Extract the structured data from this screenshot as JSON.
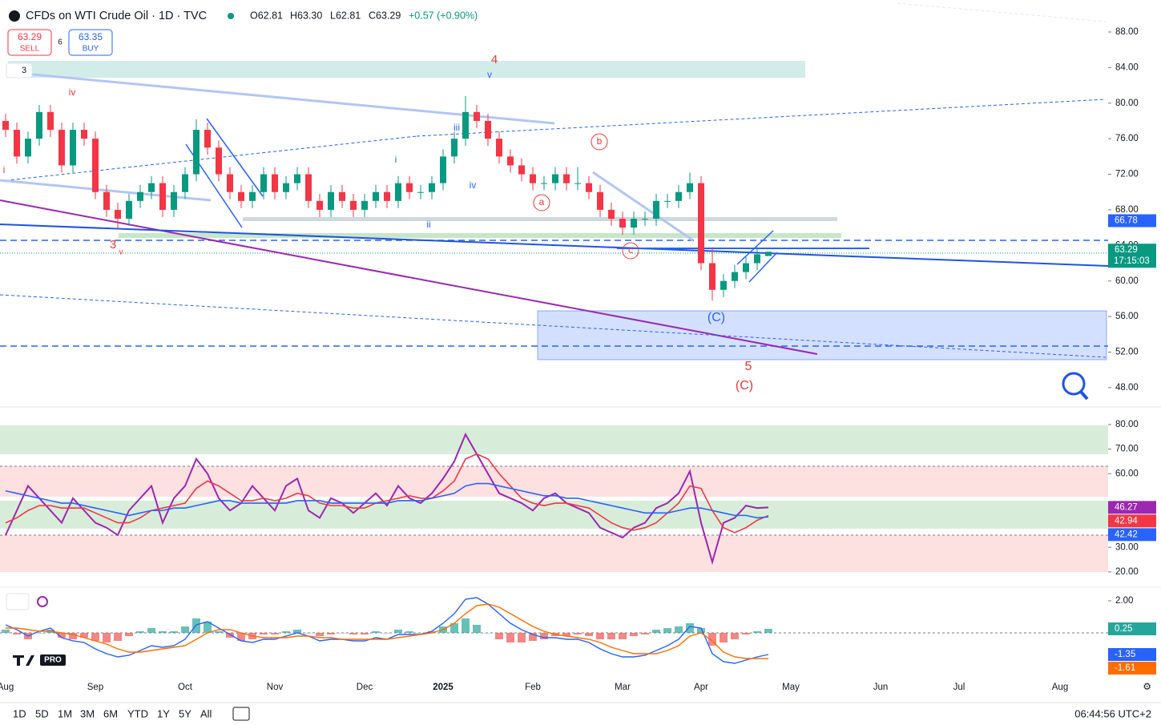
{
  "header": {
    "symbol": "CFDs on WTI Crude Oil · 1D · TVC",
    "quote": [
      "O62.81",
      "H63.30",
      "L62.81",
      "C63.29"
    ],
    "change": "+0.57 (+0.90%)",
    "sell_price": "63.29",
    "sell": "SELL",
    "spread": "6",
    "buy_price": "63.35",
    "buy": "BUY",
    "pane_count": "3",
    "countdown": "17:15:03"
  },
  "chart_data": [
    {
      "type": "candlestick",
      "up_color": "#089981",
      "down_color": "#f23645",
      "grid": false,
      "categories": [
        "Aug",
        null,
        null,
        null,
        null,
        null,
        null,
        null,
        "Sep",
        null,
        null,
        null,
        null,
        null,
        null,
        null,
        "Oct",
        null,
        null,
        null,
        null,
        null,
        null,
        null,
        "Nov",
        null,
        null,
        null,
        null,
        null,
        null,
        null,
        "Dec",
        null,
        null,
        null,
        null,
        null,
        null,
        "2025",
        null,
        null,
        null,
        null,
        null,
        null,
        null,
        "Feb",
        null,
        null,
        null,
        null,
        null,
        null,
        null,
        "Mar",
        null,
        null,
        null,
        null,
        null,
        null,
        "Apr",
        null,
        null,
        null,
        null,
        null,
        null,
        null,
        "May",
        null,
        null,
        null,
        null,
        null,
        null,
        null,
        "Jun",
        null,
        null,
        null,
        null,
        null,
        null,
        "Jul",
        null,
        null,
        null,
        null,
        null,
        null,
        null,
        null,
        "Aug",
        null,
        null,
        null
      ],
      "open": [
        78,
        77,
        74,
        76,
        79,
        77,
        73,
        77,
        76,
        70,
        68,
        67,
        69,
        70,
        71,
        68,
        70,
        72,
        77,
        75,
        72,
        70,
        69,
        70,
        72,
        70,
        71,
        72,
        69,
        68,
        70,
        69,
        68,
        69,
        70,
        69,
        71,
        70,
        70,
        71,
        74,
        76,
        79,
        78,
        76,
        74,
        73,
        72,
        71,
        71,
        72,
        71,
        71,
        70,
        68,
        67,
        66,
        67,
        67,
        69,
        69,
        70,
        71,
        62,
        59,
        60,
        61,
        62,
        62.81,
        null,
        null,
        null,
        null,
        null,
        null,
        null,
        null,
        null,
        null,
        null,
        null,
        null,
        null,
        null,
        null,
        null,
        null,
        null,
        null,
        null,
        null,
        null,
        null,
        null,
        null,
        null,
        null,
        null
      ],
      "high": [
        78.8,
        77.8,
        76.8,
        79.8,
        79.8,
        77.8,
        77.8,
        77.8,
        76.8,
        70.8,
        68.8,
        69.8,
        70.8,
        71.8,
        71.8,
        70.8,
        72.8,
        78.2,
        77.8,
        75.8,
        72.8,
        70.8,
        70.8,
        72.8,
        72.8,
        71.8,
        72.8,
        72.8,
        69.8,
        70.8,
        70.8,
        69.8,
        69.8,
        70.8,
        70.8,
        71.8,
        71.8,
        70.8,
        71.8,
        74.8,
        76.8,
        80.8,
        79.8,
        78.8,
        76.8,
        74.8,
        73.8,
        72.8,
        71.8,
        72.8,
        72.8,
        72.8,
        71.8,
        70.8,
        68.8,
        67.8,
        67.8,
        67.8,
        69.8,
        69.8,
        70.8,
        72.2,
        71.8,
        63.8,
        60.8,
        61.8,
        62.8,
        63.8,
        63.3,
        null,
        null,
        null,
        null,
        null,
        null,
        null,
        null,
        null,
        null,
        null,
        null,
        null,
        null,
        null,
        null,
        null,
        null,
        null,
        null,
        null,
        null,
        null,
        null,
        null,
        null,
        null,
        null,
        null
      ],
      "low": [
        76.2,
        73.2,
        73.2,
        75.2,
        76.2,
        72.2,
        72.2,
        75.2,
        69.2,
        67.2,
        65.8,
        66.2,
        68.2,
        69.2,
        67.2,
        67.2,
        69.2,
        71.2,
        74.2,
        71.2,
        69.2,
        68.2,
        68.2,
        69.2,
        69.2,
        69.2,
        70.2,
        68.2,
        67.2,
        67.2,
        68.2,
        67.2,
        67.2,
        68.2,
        68.2,
        68.2,
        69.2,
        69.2,
        69.2,
        70.2,
        73.2,
        75.2,
        77.2,
        75.2,
        73.2,
        72.2,
        71.2,
        70.2,
        70.2,
        70.2,
        70.2,
        70.2,
        69.2,
        67.2,
        66.2,
        65.2,
        65.2,
        66.2,
        66.2,
        68.2,
        68.2,
        69.2,
        61.2,
        57.8,
        58.2,
        59.2,
        60.2,
        61.2,
        62.81,
        null,
        null,
        null,
        null,
        null,
        null,
        null,
        null,
        null,
        null,
        null,
        null,
        null,
        null,
        null,
        null,
        null,
        null,
        null,
        null,
        null,
        null,
        null,
        null,
        null,
        null,
        null,
        null,
        null
      ],
      "close": [
        77,
        74,
        76,
        79,
        77,
        73,
        77,
        76,
        70,
        68,
        67,
        69,
        70,
        71,
        68,
        70,
        72,
        77,
        75,
        72,
        70,
        69,
        70,
        72,
        70,
        71,
        72,
        69,
        68,
        70,
        69,
        68,
        69,
        70,
        69,
        71,
        70,
        70,
        71,
        74,
        76,
        79,
        78,
        76,
        74,
        73,
        72,
        71,
        71,
        72,
        71,
        71,
        70,
        68,
        67,
        66,
        67,
        67,
        69,
        69,
        70,
        71,
        62,
        59,
        60,
        61,
        62,
        63,
        63.29,
        null,
        null,
        null,
        null,
        null,
        null,
        null,
        null,
        null,
        null,
        null,
        null,
        null,
        null,
        null,
        null,
        null,
        null,
        null,
        null,
        null,
        null,
        null,
        null,
        null,
        null,
        null,
        null,
        null
      ],
      "price_labels": [
        {
          "value": 66.78,
          "color": "#2962ff"
        }
      ],
      "ylim": [
        46.1,
        91.6
      ],
      "yticks": [
        {
          "value": 88,
          "label": "88.00"
        },
        {
          "value": 84,
          "label": "84.00"
        },
        {
          "value": 80,
          "label": "80.00"
        },
        {
          "value": 76,
          "label": "76.00"
        },
        {
          "value": 72,
          "label": "72.00"
        },
        {
          "value": 68,
          "label": "68.00"
        },
        {
          "value": 64,
          "label": "64.00"
        },
        {
          "value": 60,
          "label": "60.00"
        },
        {
          "value": 56,
          "label": "56.00"
        },
        {
          "value": 52,
          "label": "52.00"
        },
        {
          "value": 48,
          "label": "48.00"
        }
      ],
      "annotations": [
        "4",
        "v",
        "iii",
        "i",
        "iv",
        "ii",
        "3",
        "v",
        "iv",
        "i",
        "b",
        "a",
        "c",
        "(C)",
        "5",
        "(C)"
      ]
    },
    {
      "type": "line",
      "grid": false,
      "last_value_badges": true,
      "series": [
        {
          "color": "#9c27b0",
          "values": [
            35,
            45,
            55,
            50,
            45,
            40,
            50,
            45,
            40,
            38,
            35,
            45,
            50,
            55,
            40,
            50,
            55,
            66,
            60,
            50,
            45,
            48,
            55,
            50,
            45,
            55,
            58,
            45,
            42,
            50,
            48,
            44,
            48,
            52,
            47,
            55,
            50,
            48,
            52,
            58,
            65,
            76,
            68,
            60,
            52,
            50,
            48,
            45,
            50,
            52,
            48,
            46,
            44,
            38,
            36,
            34,
            38,
            40,
            46,
            48,
            52,
            61,
            40,
            24,
            40,
            42,
            47,
            46,
            46.27
          ]
        },
        {
          "color": "#f23645",
          "values": [
            40,
            42,
            45,
            47,
            47,
            46,
            46,
            46,
            44,
            42,
            40,
            40,
            42,
            45,
            46,
            47,
            48,
            54,
            57,
            55,
            52,
            49,
            49,
            50,
            49,
            50,
            52,
            51,
            48,
            47,
            47,
            46,
            46,
            48,
            49,
            50,
            51,
            50,
            50,
            53,
            57,
            66,
            68,
            66,
            60,
            55,
            50,
            48,
            47,
            48,
            48,
            47,
            46,
            43,
            40,
            38,
            37,
            38,
            40,
            44,
            48,
            55,
            54,
            45,
            38,
            36,
            38,
            41,
            42.94
          ]
        },
        {
          "color": "#2962ff",
          "values": [
            53,
            52,
            51,
            50,
            49,
            48,
            48,
            47,
            46,
            45,
            44,
            43,
            44,
            45,
            45,
            46,
            46,
            47,
            48,
            49,
            49,
            48,
            48,
            48,
            48,
            48,
            49,
            49,
            49,
            48,
            48,
            48,
            48,
            48,
            48,
            49,
            49,
            49,
            50,
            51,
            52,
            55,
            56,
            56,
            55,
            54,
            53,
            52,
            51,
            51,
            50,
            50,
            49,
            48,
            47,
            46,
            45,
            44,
            44,
            44,
            45,
            46,
            46,
            45,
            44,
            43,
            43,
            42,
            42.42
          ]
        }
      ],
      "ylim": [
        14.1,
        86.5
      ],
      "yticks": [
        {
          "value": 80,
          "label": "80.00"
        },
        {
          "value": 70,
          "label": "70.00"
        },
        {
          "value": 60,
          "label": "60.00"
        },
        {
          "value": 40,
          "label": "40.00"
        },
        {
          "value": 30,
          "label": "30.00"
        },
        {
          "value": 20,
          "label": "20.00"
        }
      ]
    },
    {
      "type": "macd",
      "grid": false,
      "last_value_badges": true,
      "up_color": "#26a69a",
      "down_color": "#ef5350",
      "values": [
        0.2,
        -0.1,
        -0.4,
        0.0,
        0.2,
        -0.3,
        -0.4,
        -0.3,
        -0.5,
        -0.6,
        -0.5,
        -0.2,
        0.1,
        0.3,
        0.1,
        0.1,
        0.4,
        0.9,
        0.7,
        0.1,
        -0.3,
        -0.5,
        -0.4,
        -0.1,
        -0.1,
        0.1,
        0.2,
        0.0,
        -0.2,
        -0.1,
        0.0,
        -0.1,
        -0.1,
        0.1,
        0.0,
        0.2,
        0.1,
        0.0,
        0.1,
        0.4,
        0.6,
        0.9,
        0.5,
        0.0,
        -0.4,
        -0.6,
        -0.6,
        -0.5,
        -0.4,
        -0.2,
        -0.2,
        -0.1,
        -0.2,
        -0.4,
        -0.4,
        -0.4,
        -0.2,
        -0.1,
        0.2,
        0.3,
        0.4,
        0.6,
        0.3,
        -0.8,
        -0.6,
        -0.4,
        -0.1,
        0.1,
        0.25
      ],
      "series": [
        {
          "color": "#2962ff",
          "values": [
            0.5,
            0.2,
            -0.2,
            0.1,
            0.3,
            -0.3,
            -0.5,
            -0.6,
            -1.0,
            -1.3,
            -1.5,
            -1.4,
            -1.1,
            -0.8,
            -0.9,
            -0.8,
            -0.4,
            0.5,
            0.7,
            0.3,
            -0.1,
            -0.5,
            -0.6,
            -0.4,
            -0.4,
            -0.2,
            0.0,
            -0.2,
            -0.5,
            -0.4,
            -0.4,
            -0.5,
            -0.5,
            -0.3,
            -0.4,
            -0.1,
            -0.1,
            -0.1,
            0.1,
            0.6,
            1.2,
            2.1,
            2.2,
            1.8,
            1.2,
            0.6,
            0.2,
            -0.1,
            -0.3,
            -0.3,
            -0.4,
            -0.4,
            -0.6,
            -1.0,
            -1.3,
            -1.5,
            -1.5,
            -1.4,
            -1.1,
            -0.8,
            -0.4,
            0.4,
            0.3,
            -1.3,
            -1.8,
            -1.9,
            -1.7,
            -1.5,
            -1.35
          ]
        },
        {
          "color": "#ff6d00",
          "values": [
            0.3,
            0.3,
            0.2,
            0.1,
            0.1,
            0.0,
            -0.1,
            -0.3,
            -0.5,
            -0.7,
            -1.0,
            -1.2,
            -1.2,
            -1.1,
            -1.0,
            -0.9,
            -0.8,
            -0.4,
            0.0,
            0.2,
            0.2,
            0.0,
            -0.2,
            -0.3,
            -0.3,
            -0.3,
            -0.2,
            -0.2,
            -0.3,
            -0.3,
            -0.4,
            -0.4,
            -0.4,
            -0.4,
            -0.4,
            -0.3,
            -0.2,
            -0.1,
            0.0,
            0.2,
            0.6,
            1.2,
            1.7,
            1.8,
            1.6,
            1.2,
            0.8,
            0.4,
            0.1,
            -0.1,
            -0.2,
            -0.3,
            -0.4,
            -0.6,
            -0.9,
            -1.1,
            -1.3,
            -1.3,
            -1.3,
            -1.1,
            -0.8,
            -0.2,
            0.0,
            -0.5,
            -1.2,
            -1.5,
            -1.6,
            -1.6,
            -1.61
          ]
        }
      ],
      "ylim": [
        -2.9,
        2.75
      ],
      "yticks": [
        {
          "value": 2,
          "label": "2.00"
        }
      ]
    }
  ],
  "toolbar": {
    "ranges": [
      "1D",
      "5D",
      "1M",
      "3M",
      "6M",
      "YTD",
      "1Y",
      "5Y",
      "All"
    ],
    "clock": "06:44:56 UTC+2",
    "badge": "PRO"
  }
}
